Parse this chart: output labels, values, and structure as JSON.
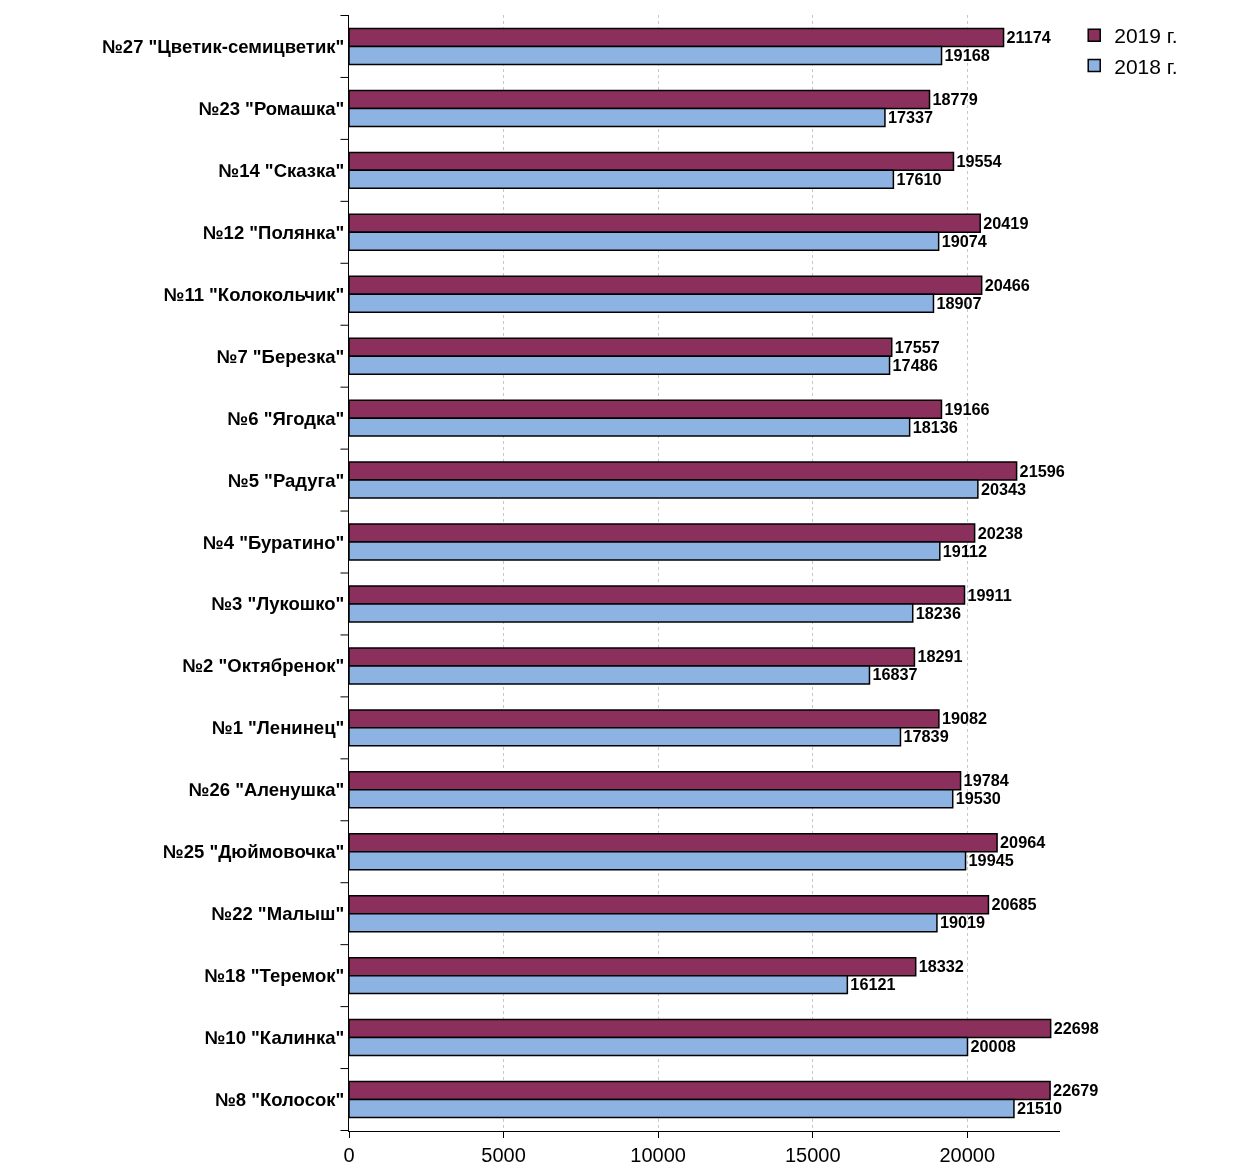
{
  "chart_data": {
    "type": "bar",
    "orientation": "horizontal",
    "categories": [
      "№27 \"Цветик-семицветик\"",
      "№23 \"Ромашка\"",
      "№14 \"Сказка\"",
      "№12 \"Полянка\"",
      "№11 \"Колокольчик\"",
      "№7 \"Березка\"",
      "№6 \"Ягодка\"",
      "№5 \"Радуга\"",
      "№4 \"Буратино\"",
      "№3 \"Лукошко\"",
      "№2 \"Октябренок\"",
      "№1 \"Ленинец\"",
      "№26 \"Аленушка\"",
      "№25 \"Дюймовочка\"",
      "№22 \"Малыш\"",
      "№18 \"Теремок\"",
      "№10 \"Калинка\"",
      "№8 \"Колосок\""
    ],
    "series": [
      {
        "name": "2019 г.",
        "color": "#8b2f5c",
        "values": [
          21174,
          18779,
          19554,
          20419,
          20466,
          17557,
          19166,
          21596,
          20238,
          19911,
          18291,
          19082,
          19784,
          20964,
          20685,
          18332,
          22698,
          22679
        ]
      },
      {
        "name": "2018 г.",
        "color": "#8db3e2",
        "values": [
          19168,
          17337,
          17610,
          19074,
          18907,
          17486,
          18136,
          20343,
          19112,
          18236,
          16837,
          17839,
          19530,
          19945,
          19019,
          16121,
          20008,
          21510
        ]
      }
    ],
    "xlim": [
      0,
      23000
    ],
    "xticks": [
      0,
      5000,
      10000,
      15000,
      20000
    ],
    "grid": "x",
    "legend": "top right",
    "data_labels": true
  }
}
